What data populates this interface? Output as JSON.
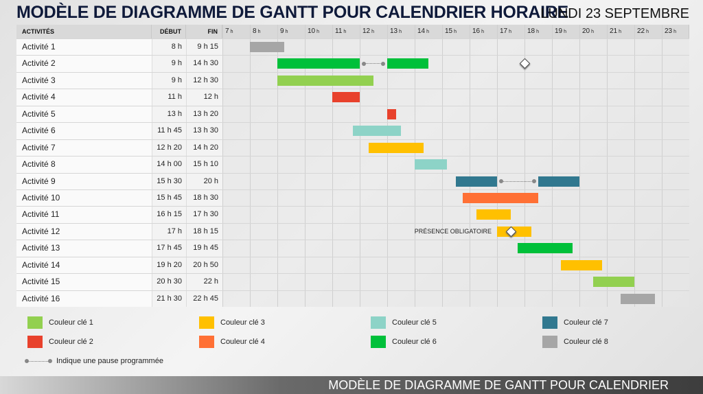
{
  "title": "MODÈLE DE DIAGRAMME DE GANTT POUR CALENDRIER HORAIRE",
  "date": "LUNDI 23 SEPTEMBRE",
  "headers": {
    "activities": "ACTIVITÉS",
    "start": "DÉBUT",
    "end": "FIN"
  },
  "hours": [
    "7",
    "8",
    "9",
    "10",
    "11",
    "12",
    "13",
    "14",
    "15",
    "16",
    "17",
    "18",
    "19",
    "20",
    "21",
    "22",
    "23"
  ],
  "hour_suffix": "h",
  "colors": {
    "k1": "#92d050",
    "k2": "#e8412c",
    "k3": "#ffc000",
    "k4": "#ff7035",
    "k5": "#8dd3c7",
    "k6": "#00c03a",
    "k7": "#31788f",
    "k8": "#a6a6a6"
  },
  "activities": [
    {
      "name": "Activité 1",
      "start": "8 h",
      "end": "9 h 15",
      "bars": [
        [
          8,
          9.25
        ]
      ],
      "color": "k8"
    },
    {
      "name": "Activité 2",
      "start": "9 h",
      "end": "14 h 30",
      "bars": [
        [
          9,
          12
        ],
        [
          13,
          14.5
        ]
      ],
      "pause": [
        12,
        13
      ],
      "milestone": 18,
      "color": "k6"
    },
    {
      "name": "Activité 3",
      "start": "9 h",
      "end": "12 h 30",
      "bars": [
        [
          9,
          12.5
        ]
      ],
      "color": "k1"
    },
    {
      "name": "Activité 4",
      "start": "11 h",
      "end": "12 h",
      "bars": [
        [
          11,
          12
        ]
      ],
      "color": "k2"
    },
    {
      "name": "Activité 5",
      "start": "13 h",
      "end": "13 h 20",
      "bars": [
        [
          13,
          13.333
        ]
      ],
      "color": "k2"
    },
    {
      "name": "Activité 6",
      "start": "11 h 45",
      "end": "13 h 30",
      "bars": [
        [
          11.75,
          13.5
        ]
      ],
      "color": "k5"
    },
    {
      "name": "Activité 7",
      "start": "12 h 20",
      "end": "14 h 20",
      "bars": [
        [
          12.333,
          14.333
        ]
      ],
      "color": "k3"
    },
    {
      "name": "Activité 8",
      "start": "14 h 00",
      "end": "15 h 10",
      "bars": [
        [
          14,
          15.167
        ]
      ],
      "color": "k5"
    },
    {
      "name": "Activité 9",
      "start": "15 h 30",
      "end": "20 h",
      "bars": [
        [
          15.5,
          17
        ],
        [
          18.5,
          20
        ]
      ],
      "pause": [
        17,
        18.5
      ],
      "color": "k7"
    },
    {
      "name": "Activité 10",
      "start": "15 h 45",
      "end": "18 h 30",
      "bars": [
        [
          15.75,
          18.5
        ]
      ],
      "color": "k4"
    },
    {
      "name": "Activité 11",
      "start": "16 h 15",
      "end": "17 h 30",
      "bars": [
        [
          16.25,
          17.5
        ]
      ],
      "color": "k3"
    },
    {
      "name": "Activité 12",
      "start": "17 h",
      "end": "18 h 15",
      "bars": [
        [
          17,
          18.25
        ]
      ],
      "milestone": 17.5,
      "note": "PRÉSENCE OBLIGATOIRE",
      "color": "k3"
    },
    {
      "name": "Activité 13",
      "start": "17 h 45",
      "end": "19 h 45",
      "bars": [
        [
          17.75,
          19.75
        ]
      ],
      "color": "k6"
    },
    {
      "name": "Activité 14",
      "start": "19 h 20",
      "end": "20 h 50",
      "bars": [
        [
          19.333,
          20.833
        ]
      ],
      "color": "k3"
    },
    {
      "name": "Activité 15",
      "start": "20 h 30",
      "end": "22 h",
      "bars": [
        [
          20.5,
          22
        ]
      ],
      "color": "k1"
    },
    {
      "name": "Activité 16",
      "start": "21 h 30",
      "end": "22 h 45",
      "bars": [
        [
          21.5,
          22.75
        ]
      ],
      "color": "k8"
    }
  ],
  "legend": [
    {
      "label": "Couleur clé 1",
      "color": "k1"
    },
    {
      "label": "Couleur clé 2",
      "color": "k2"
    },
    {
      "label": "Couleur clé 3",
      "color": "k3"
    },
    {
      "label": "Couleur clé 4",
      "color": "k4"
    },
    {
      "label": "Couleur clé 5",
      "color": "k5"
    },
    {
      "label": "Couleur clé 6",
      "color": "k6"
    },
    {
      "label": "Couleur clé 7",
      "color": "k7"
    },
    {
      "label": "Couleur clé 8",
      "color": "k8"
    }
  ],
  "pause_legend": "Indique une pause programmée",
  "footer": "MODÈLE DE DIAGRAMME DE GANTT POUR CALENDRIER"
}
